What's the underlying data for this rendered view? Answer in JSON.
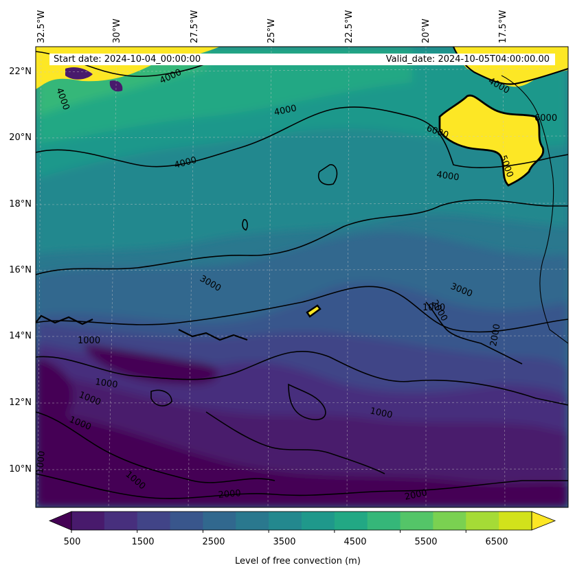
{
  "map": {
    "start_date_label": "Start date: 2024-10-04_00:00:00",
    "valid_date_label": "Valid_date: 2024-10-05T04:00:00.00",
    "lon_labels": [
      "32.5°W",
      "30°W",
      "27.5°W",
      "25°W",
      "22.5°W",
      "20°W",
      "17.5°W"
    ],
    "lat_labels": [
      "22°N",
      "20°N",
      "18°N",
      "16°N",
      "14°N",
      "12°N",
      "10°N"
    ],
    "contour_labels": [
      "4000",
      "4000",
      "4000",
      "4000",
      "4000",
      "4000",
      "6000",
      "6000",
      "5000",
      "3000",
      "3000",
      "2000",
      "2000",
      "2000",
      "2000",
      "1000",
      "1000",
      "1000",
      "1000",
      "1000",
      "1000",
      "1000",
      "1000"
    ]
  },
  "colorbar": {
    "title": "Level of free convection (m)",
    "ticks": [
      "500",
      "1500",
      "2500",
      "3500",
      "4500",
      "5500",
      "6500"
    ],
    "colors": [
      "#440154",
      "#481a6c",
      "#472f7d",
      "#414487",
      "#39568c",
      "#31688e",
      "#2a788e",
      "#23888e",
      "#1f988b",
      "#22a884",
      "#35b779",
      "#54c568",
      "#7ad151",
      "#a5db36",
      "#d2e21b",
      "#fde725"
    ]
  },
  "colors": {
    "low": "#440154",
    "mid": "#2a788e",
    "high": "#fde725"
  }
}
